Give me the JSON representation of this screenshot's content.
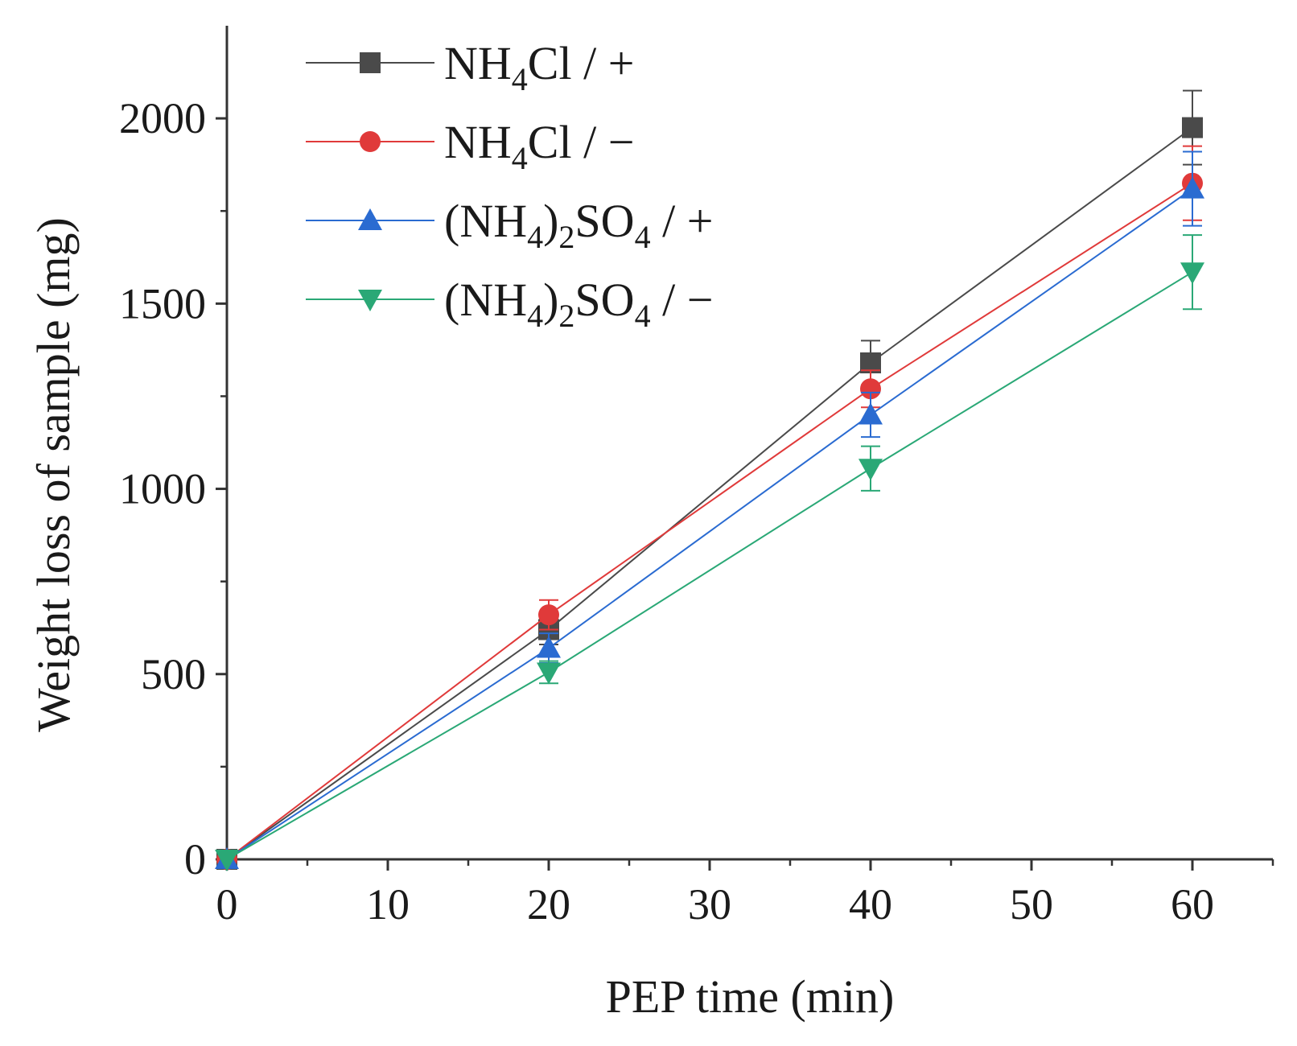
{
  "chart_data": {
    "type": "line",
    "title": "",
    "xlabel": "PEP time (min)",
    "ylabel": "Weight loss of sample (mg)",
    "xlim": [
      0,
      65
    ],
    "ylim": [
      0,
      2250
    ],
    "xticks": [
      0,
      10,
      20,
      30,
      40,
      50,
      60
    ],
    "yticks": [
      0,
      500,
      1000,
      1500,
      2000
    ],
    "xtick_labels": [
      "0",
      "10",
      "20",
      "30",
      "40",
      "50",
      "60"
    ],
    "ytick_labels": [
      "0",
      "500",
      "1000",
      "1500",
      "2000"
    ],
    "grid": false,
    "legend_position": "top-left",
    "x": [
      0,
      20,
      40,
      60
    ],
    "series": [
      {
        "name": "NH4Cl / +",
        "legend_parts": [
          [
            "NH",
            ""
          ],
          [
            "4",
            "sub"
          ],
          [
            "Cl / +",
            ""
          ]
        ],
        "color": "#4a4a4a",
        "marker": "square",
        "values": [
          0,
          620,
          1340,
          1975
        ],
        "errors": [
          0,
          40,
          60,
          100
        ]
      },
      {
        "name": "NH4Cl / −",
        "legend_parts": [
          [
            "NH",
            ""
          ],
          [
            "4",
            "sub"
          ],
          [
            "Cl / −",
            ""
          ]
        ],
        "color": "#e03a3a",
        "marker": "circle",
        "values": [
          0,
          660,
          1270,
          1825
        ],
        "errors": [
          0,
          40,
          50,
          100
        ]
      },
      {
        "name": "(NH4)2SO4 / +",
        "legend_parts": [
          [
            "(NH",
            ""
          ],
          [
            "4",
            "sub"
          ],
          [
            ")",
            ""
          ],
          [
            "2",
            "sub"
          ],
          [
            "SO",
            ""
          ],
          [
            "4",
            "sub"
          ],
          [
            " / +",
            ""
          ]
        ],
        "color": "#2a6bd1",
        "marker": "triangle-up",
        "values": [
          0,
          570,
          1200,
          1810
        ],
        "errors": [
          0,
          40,
          60,
          100
        ]
      },
      {
        "name": "(NH4)2SO4 / −",
        "legend_parts": [
          [
            "(NH",
            ""
          ],
          [
            "4",
            "sub"
          ],
          [
            ")",
            ""
          ],
          [
            "2",
            "sub"
          ],
          [
            "SO",
            ""
          ],
          [
            "4",
            "sub"
          ],
          [
            " / −",
            ""
          ]
        ],
        "color": "#2aa876",
        "marker": "triangle-down",
        "values": [
          0,
          505,
          1055,
          1585
        ],
        "errors": [
          0,
          30,
          60,
          100
        ]
      }
    ]
  }
}
